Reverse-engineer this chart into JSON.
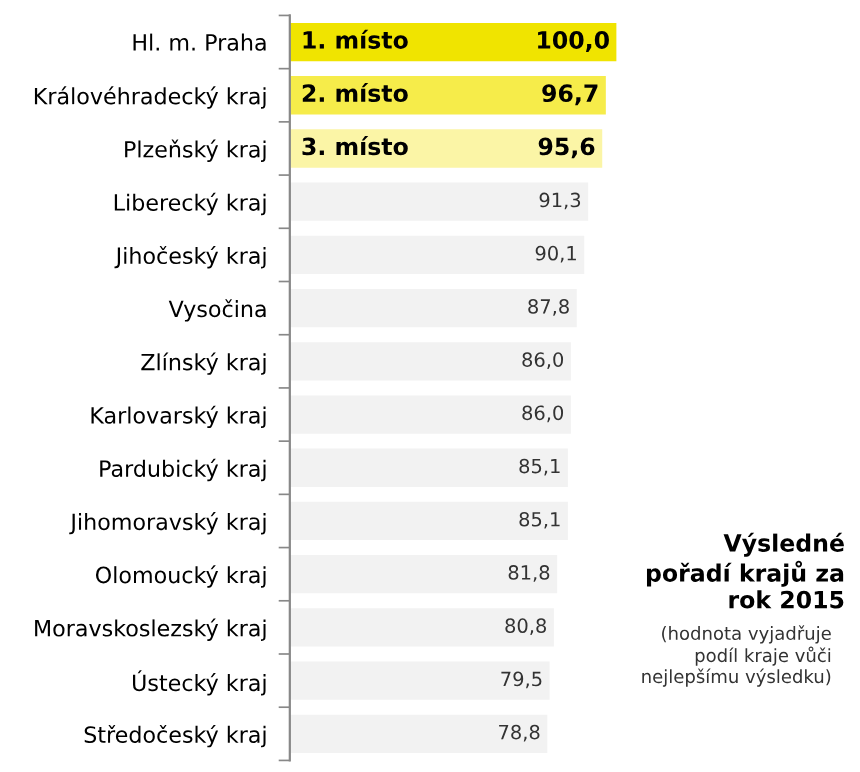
{
  "chart_data": {
    "type": "bar",
    "orientation": "horizontal",
    "title": "Výsledné pořadí krajů za rok 2015",
    "annotations": [
      "(hodnota vyjadřuje podíl kraje vůči nejlepšímu výsledku)",
      {
        "text": "1. místo",
        "y": "Hl. m. Praha"
      },
      {
        "text": "2. místo",
        "y": "Královéhradecký kraj"
      },
      {
        "text": "3. místo",
        "y": "Plzeňský kraj"
      }
    ],
    "categories": [
      "Hl. m. Praha",
      "Královéhradecký kraj",
      "Plzeňský kraj",
      "Liberecký kraj",
      "Jihočeský kraj",
      "Vysočina",
      "Zlínský kraj",
      "Karlovarský kraj",
      "Pardubický kraj",
      "Jihomoravský kraj",
      "Olomoucký kraj",
      "Moravskoslezský kraj",
      "Ústecký kraj",
      "Středočeský kraj"
    ],
    "values": [
      100.0,
      96.7,
      95.6,
      91.3,
      90.1,
      87.8,
      86.0,
      86.0,
      85.1,
      85.1,
      81.8,
      80.8,
      79.5,
      78.8
    ],
    "value_labels": [
      "100,0",
      "96,7",
      "95,6",
      "91,3",
      "90,1",
      "87,8",
      "86,0",
      "86,0",
      "85,1",
      "85,1",
      "81,8",
      "80,8",
      "79,5",
      "78,8"
    ],
    "colors": [
      "#f0e400",
      "#f6ec4a",
      "#fbf5a6",
      "#f2f2f2",
      "#f2f2f2",
      "#f2f2f2",
      "#f2f2f2",
      "#f2f2f2",
      "#f2f2f2",
      "#f2f2f2",
      "#f2f2f2",
      "#f2f2f2",
      "#f2f2f2",
      "#f2f2f2"
    ],
    "tick_labels": "y",
    "grid": false,
    "legend": false
  }
}
